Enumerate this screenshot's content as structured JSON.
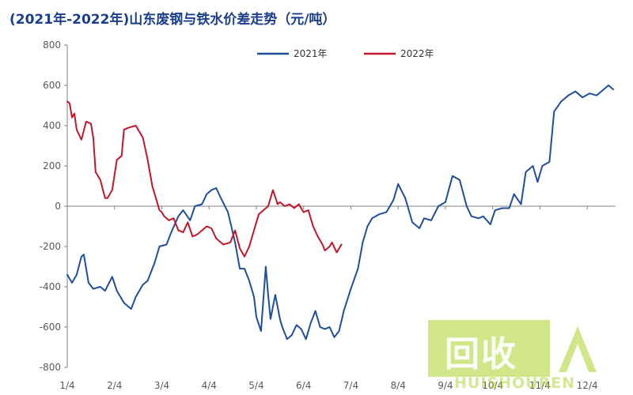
{
  "title": "(2021年-2022年)山东废钢与铁水价差走势（元/吨）",
  "colors": {
    "series_2021": "#1f4e9c",
    "series_2022": "#c0172a",
    "watermark": "#a6cf2a"
  },
  "watermark": {
    "logo_text": "回收",
    "sub_text": "HUISHOUREN"
  },
  "chart_data": {
    "type": "line",
    "title": "(2021年-2022年)山东废钢与铁水价差走势（元/吨）",
    "xlabel": "",
    "ylabel": "",
    "ylim": [
      -800,
      800
    ],
    "yticks": [
      -800,
      -600,
      -400,
      -200,
      0,
      200,
      400,
      600,
      800
    ],
    "xlim": [
      1,
      12.6
    ],
    "xtick_labels": [
      "1/4",
      "2/4",
      "3/4",
      "4/4",
      "5/4",
      "6/4",
      "7/4",
      "8/4",
      "9/4",
      "10/4",
      "11/4",
      "12/4"
    ],
    "legend_position": "top-center",
    "grid": false,
    "series": [
      {
        "name": "2021年",
        "color": "#1f4e9c",
        "x": [
          1.0,
          1.1,
          1.2,
          1.3,
          1.35,
          1.45,
          1.55,
          1.7,
          1.8,
          1.95,
          2.05,
          2.2,
          2.35,
          2.45,
          2.6,
          2.7,
          2.85,
          2.95,
          3.1,
          3.2,
          3.35,
          3.45,
          3.6,
          3.7,
          3.85,
          3.95,
          4.05,
          4.15,
          4.25,
          4.4,
          4.5,
          4.55,
          4.65,
          4.75,
          4.85,
          4.95,
          5.0,
          5.1,
          5.2,
          5.25,
          5.3,
          5.4,
          5.5,
          5.55,
          5.65,
          5.75,
          5.85,
          5.95,
          6.05,
          6.15,
          6.25,
          6.35,
          6.45,
          6.55,
          6.65,
          6.75,
          6.85,
          7.0,
          7.15,
          7.25,
          7.35,
          7.45,
          7.6,
          7.75,
          7.9,
          8.0,
          8.15,
          8.3,
          8.45,
          8.55,
          8.7,
          8.85,
          9.0,
          9.15,
          9.3,
          9.45,
          9.55,
          9.7,
          9.8,
          9.95,
          10.05,
          10.2,
          10.35,
          10.45,
          10.6,
          10.7,
          10.85,
          10.95,
          11.05,
          11.2,
          11.3,
          11.45,
          11.6,
          11.75,
          11.9,
          12.05,
          12.2,
          12.35,
          12.45,
          12.55
        ],
        "values": [
          -340,
          -380,
          -340,
          -250,
          -240,
          -380,
          -410,
          -400,
          -420,
          -350,
          -420,
          -480,
          -510,
          -450,
          -390,
          -370,
          -280,
          -200,
          -190,
          -130,
          -50,
          -20,
          -70,
          0,
          10,
          60,
          80,
          90,
          40,
          -30,
          -130,
          -180,
          -310,
          -310,
          -370,
          -450,
          -550,
          -620,
          -300,
          -440,
          -560,
          -440,
          -560,
          -600,
          -660,
          -640,
          -590,
          -610,
          -660,
          -580,
          -520,
          -600,
          -610,
          -600,
          -650,
          -620,
          -520,
          -410,
          -310,
          -180,
          -100,
          -60,
          -40,
          -30,
          30,
          110,
          40,
          -80,
          -110,
          -60,
          -70,
          0,
          20,
          150,
          130,
          0,
          -50,
          -60,
          -50,
          -90,
          -20,
          -10,
          -10,
          60,
          10,
          170,
          200,
          120,
          200,
          220,
          470,
          520,
          550,
          570,
          540,
          560,
          550,
          580,
          600,
          580
        ]
      },
      {
        "name": "2022年",
        "color": "#c0172a",
        "x": [
          1.0,
          1.05,
          1.1,
          1.15,
          1.2,
          1.3,
          1.4,
          1.5,
          1.55,
          1.6,
          1.7,
          1.8,
          1.85,
          1.95,
          2.05,
          2.15,
          2.2,
          2.3,
          2.45,
          2.55,
          2.6,
          2.7,
          2.8,
          2.95,
          3.0,
          3.05,
          3.15,
          3.25,
          3.35,
          3.45,
          3.55,
          3.65,
          3.75,
          3.85,
          3.95,
          4.05,
          4.15,
          4.3,
          4.45,
          4.55,
          4.65,
          4.75,
          4.85,
          4.95,
          5.05,
          5.15,
          5.25,
          5.35,
          5.45,
          5.5,
          5.6,
          5.7,
          5.8,
          5.9,
          6.0,
          6.1,
          6.2,
          6.3,
          6.4,
          6.45,
          6.55,
          6.6,
          6.7,
          6.8
        ],
        "values": [
          520,
          510,
          440,
          460,
          380,
          330,
          420,
          410,
          340,
          170,
          130,
          40,
          40,
          80,
          230,
          250,
          380,
          390,
          400,
          360,
          340,
          230,
          100,
          -20,
          -30,
          -50,
          -70,
          -60,
          -120,
          -130,
          -80,
          -150,
          -140,
          -120,
          -100,
          -110,
          -160,
          -190,
          -180,
          -120,
          -210,
          -250,
          -200,
          -120,
          -40,
          -20,
          0,
          80,
          10,
          20,
          0,
          10,
          -10,
          10,
          -30,
          -20,
          -100,
          -150,
          -190,
          -220,
          -200,
          -180,
          -230,
          -190
        ]
      }
    ]
  }
}
